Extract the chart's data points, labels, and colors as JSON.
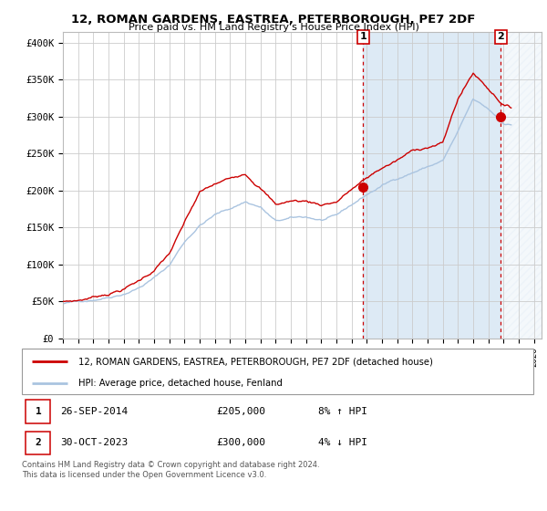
{
  "title": "12, ROMAN GARDENS, EASTREA, PETERBOROUGH, PE7 2DF",
  "subtitle": "Price paid vs. HM Land Registry's House Price Index (HPI)",
  "ylabel_ticks": [
    "£0",
    "£50K",
    "£100K",
    "£150K",
    "£200K",
    "£250K",
    "£300K",
    "£350K",
    "£400K"
  ],
  "ytick_values": [
    0,
    50000,
    100000,
    150000,
    200000,
    250000,
    300000,
    350000,
    400000
  ],
  "ylim": [
    0,
    415000
  ],
  "legend_line1": "12, ROMAN GARDENS, EASTREA, PETERBOROUGH, PE7 2DF (detached house)",
  "legend_line2": "HPI: Average price, detached house, Fenland",
  "annotation1_label": "1",
  "annotation1_date": "26-SEP-2014",
  "annotation1_price": "£205,000",
  "annotation1_hpi": "8% ↑ HPI",
  "annotation1_year": 2014.75,
  "annotation1_value": 205000,
  "annotation2_label": "2",
  "annotation2_date": "30-OCT-2023",
  "annotation2_price": "£300,000",
  "annotation2_hpi": "4% ↓ HPI",
  "annotation2_year": 2023.83,
  "annotation2_value": 300000,
  "footer": "Contains HM Land Registry data © Crown copyright and database right 2024.\nThis data is licensed under the Open Government Licence v3.0.",
  "hpi_color": "#aac4e0",
  "hpi_fill_color": "#ddeaf5",
  "price_color": "#cc0000",
  "annotation_color": "#cc0000",
  "grid_color": "#cccccc",
  "background_color": "#ffffff",
  "shade_color": "#ddeaf5"
}
